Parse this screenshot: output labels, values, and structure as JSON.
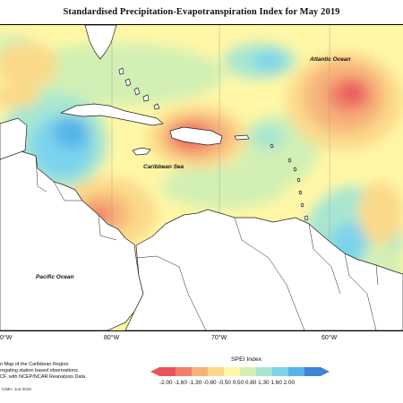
{
  "title": "Standardised Precipitation-Evapotranspiration Index for May 2019",
  "labels": {
    "atlantic": "Atlantic Ocean",
    "caribbean": "Caribbean Sea",
    "pacific": "Pacific Ocean"
  },
  "longitude_ticks": [
    "0°W",
    "80°W",
    "70°W",
    "60°W"
  ],
  "footnote": {
    "line1": "n Map of the Caribbean Region",
    "line2": "regating station based observations.",
    "line3": "CF, with NCEP/NCAR Reanalysis Data."
  },
  "credit": "CIMH, Jun-2019",
  "legend": {
    "title": "SPEI Index",
    "values_text": "-2.00 -1.60 -1.30 -0.80 -0.50  0.50  0.80  1.30  1.60  2.00",
    "colors": [
      "#e8545a",
      "#f0806a",
      "#f7b27a",
      "#fbd98a",
      "#fff7a6",
      "#d2f0b4",
      "#a7e6d0",
      "#7cd3ec",
      "#57b4ea",
      "#3f83d9"
    ]
  }
}
